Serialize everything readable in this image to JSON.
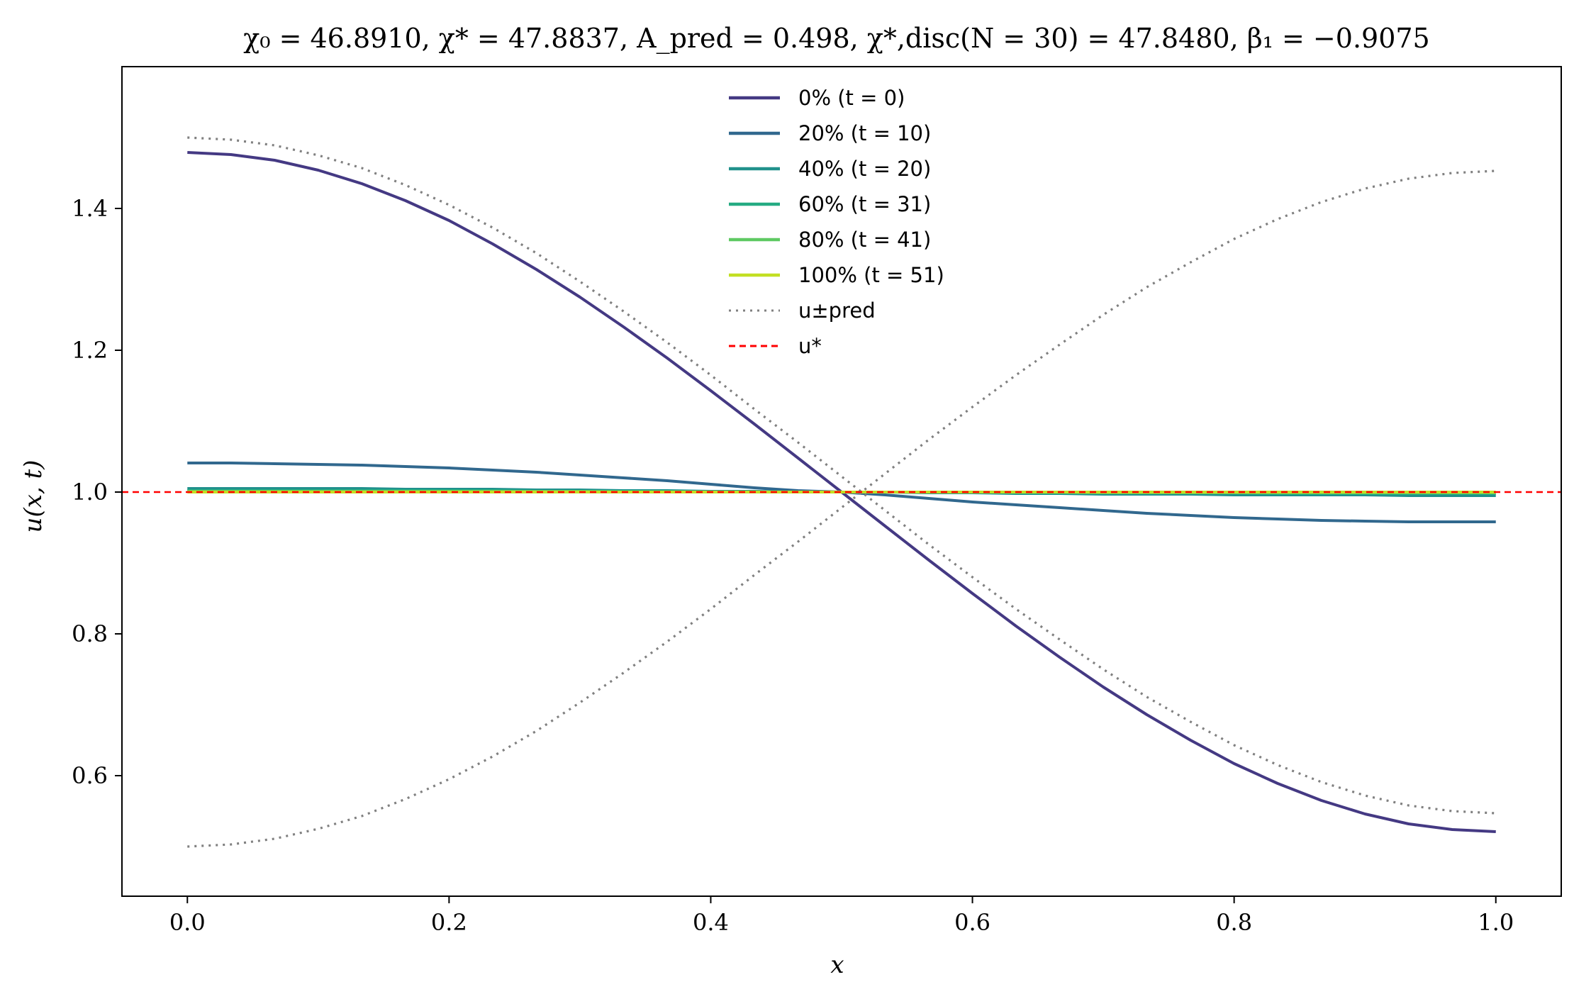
{
  "chart_data": {
    "type": "line",
    "title": "χ₀ = 46.8910,  χ* = 47.8837,  A_pred = 0.498,  χ*,disc(N = 30) = 47.8480,  β₁ = −0.9075",
    "xlabel": "x",
    "ylabel": "u(x, t)",
    "xlim": [
      -0.05,
      1.05
    ],
    "ylim": [
      0.43,
      1.6
    ],
    "xticks": [
      0.0,
      0.2,
      0.4,
      0.6,
      0.8,
      1.0
    ],
    "xtick_labels": [
      "0.0",
      "0.2",
      "0.4",
      "0.6",
      "0.8",
      "1.0"
    ],
    "yticks": [
      0.6,
      0.8,
      1.0,
      1.2,
      1.4
    ],
    "ytick_labels": [
      "0.6",
      "0.8",
      "1.0",
      "1.2",
      "1.4"
    ],
    "grid": false,
    "legend_position": "top-center",
    "x": [
      0.0,
      0.0333,
      0.0667,
      0.1,
      0.1333,
      0.1667,
      0.2,
      0.2333,
      0.2667,
      0.3,
      0.3333,
      0.3667,
      0.4,
      0.4333,
      0.4667,
      0.5,
      0.5333,
      0.5667,
      0.6,
      0.6333,
      0.6667,
      0.7,
      0.7333,
      0.7667,
      0.8,
      0.8333,
      0.8667,
      0.9,
      0.9333,
      0.9667,
      1.0
    ],
    "series": [
      {
        "name": "0% (t = 0)",
        "color": "#443983",
        "style": "solid",
        "values": [
          1.479,
          1.476,
          1.468,
          1.454,
          1.435,
          1.411,
          1.383,
          1.35,
          1.314,
          1.275,
          1.233,
          1.189,
          1.143,
          1.096,
          1.048,
          1.0,
          0.952,
          0.904,
          0.857,
          0.811,
          0.767,
          0.725,
          0.686,
          0.65,
          0.617,
          0.589,
          0.565,
          0.546,
          0.532,
          0.524,
          0.521
        ]
      },
      {
        "name": "20% (t = 10)",
        "color": "#31688e",
        "style": "solid",
        "values": [
          1.041,
          1.041,
          1.04,
          1.039,
          1.038,
          1.036,
          1.034,
          1.031,
          1.028,
          1.024,
          1.02,
          1.016,
          1.011,
          1.006,
          1.002,
          1.0,
          0.996,
          0.991,
          0.986,
          0.982,
          0.978,
          0.974,
          0.97,
          0.967,
          0.964,
          0.962,
          0.96,
          0.959,
          0.958,
          0.958,
          0.958
        ]
      },
      {
        "name": "40% (t = 20)",
        "color": "#21918c",
        "style": "solid",
        "values": [
          1.005,
          1.005,
          1.005,
          1.005,
          1.005,
          1.004,
          1.004,
          1.004,
          1.003,
          1.003,
          1.002,
          1.002,
          1.001,
          1.001,
          1.0,
          1.0,
          1.0,
          0.999,
          0.999,
          0.998,
          0.998,
          0.997,
          0.997,
          0.997,
          0.996,
          0.996,
          0.996,
          0.996,
          0.995,
          0.995,
          0.995
        ]
      },
      {
        "name": "60% (t = 31)",
        "color": "#25ab82",
        "style": "solid",
        "values": [
          1.002,
          1.002,
          1.002,
          1.002,
          1.002,
          1.002,
          1.002,
          1.002,
          1.001,
          1.001,
          1.001,
          1.001,
          1.0,
          1.0,
          1.0,
          1.0,
          1.0,
          1.0,
          1.0,
          0.999,
          0.999,
          0.999,
          0.999,
          0.999,
          0.999,
          0.998,
          0.998,
          0.998,
          0.998,
          0.998,
          0.998
        ]
      },
      {
        "name": "80% (t = 41)",
        "color": "#5ec962",
        "style": "solid",
        "values": [
          1.001,
          1.001,
          1.001,
          1.001,
          1.001,
          1.001,
          1.001,
          1.001,
          1.001,
          1.001,
          1.0,
          1.0,
          1.0,
          1.0,
          1.0,
          1.0,
          1.0,
          1.0,
          1.0,
          1.0,
          1.0,
          0.999,
          0.999,
          0.999,
          0.999,
          0.999,
          0.999,
          0.999,
          0.999,
          0.999,
          0.999
        ]
      },
      {
        "name": "100% (t = 51)",
        "color": "#c2df23",
        "style": "solid",
        "values": [
          1.0,
          1.0,
          1.0,
          1.0,
          1.0,
          1.0,
          1.0,
          1.0,
          1.0,
          1.0,
          1.0,
          1.0,
          1.0,
          1.0,
          1.0,
          1.0,
          1.0,
          1.0,
          1.0,
          1.0,
          1.0,
          1.0,
          1.0,
          1.0,
          1.0,
          1.0,
          1.0,
          1.0,
          1.0,
          1.0,
          1.0
        ]
      },
      {
        "name": "u±pred (+)",
        "legend": false,
        "color": "#808080",
        "style": "dotted",
        "values": [
          0.5,
          0.503,
          0.511,
          0.525,
          0.543,
          0.567,
          0.595,
          0.627,
          0.663,
          0.703,
          0.745,
          0.789,
          0.835,
          0.883,
          0.93,
          0.978,
          1.026,
          1.074,
          1.12,
          1.165,
          1.208,
          1.25,
          1.289,
          1.324,
          1.357,
          1.385,
          1.409,
          1.428,
          1.442,
          1.45,
          1.453
        ]
      },
      {
        "name": "u±pred (−)",
        "legend": false,
        "color": "#808080",
        "style": "dotted",
        "values": [
          1.5,
          1.497,
          1.489,
          1.475,
          1.457,
          1.433,
          1.405,
          1.373,
          1.337,
          1.297,
          1.255,
          1.211,
          1.165,
          1.117,
          1.07,
          1.022,
          0.974,
          0.926,
          0.88,
          0.835,
          0.792,
          0.75,
          0.711,
          0.676,
          0.643,
          0.615,
          0.591,
          0.572,
          0.558,
          0.55,
          0.547
        ]
      }
    ],
    "legend_entries": [
      {
        "label": "0% (t = 0)",
        "color": "#443983",
        "style": "solid"
      },
      {
        "label": "20% (t = 10)",
        "color": "#31688e",
        "style": "solid"
      },
      {
        "label": "40% (t = 20)",
        "color": "#21918c",
        "style": "solid"
      },
      {
        "label": "60% (t = 31)",
        "color": "#25ab82",
        "style": "solid"
      },
      {
        "label": "80% (t = 41)",
        "color": "#5ec962",
        "style": "solid"
      },
      {
        "label": "100% (t = 51)",
        "color": "#c2df23",
        "style": "solid"
      },
      {
        "label": "u±pred",
        "color": "#808080",
        "style": "dotted"
      },
      {
        "label": "u*",
        "color": "#ff0000",
        "style": "dashed"
      }
    ],
    "reference_line": {
      "name": "u*",
      "y": 1.0,
      "color": "#ff0000",
      "style": "dashed"
    }
  }
}
